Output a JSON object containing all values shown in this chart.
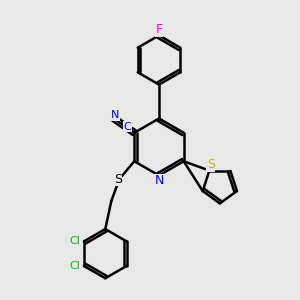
{
  "bg_color": "#e8e8e8",
  "bond_width": 1.8,
  "figsize": [
    3.0,
    3.0
  ],
  "dpi": 100,
  "xlim": [
    0,
    10
  ],
  "ylim": [
    0,
    10
  ],
  "F_color": "#ff00cc",
  "N_color": "#0000ff",
  "S_thio_color": "#bbbb00",
  "S_sulfanyl_color": "#000000",
  "Cl_color": "#00bb00",
  "CN_color": "#0000ff"
}
